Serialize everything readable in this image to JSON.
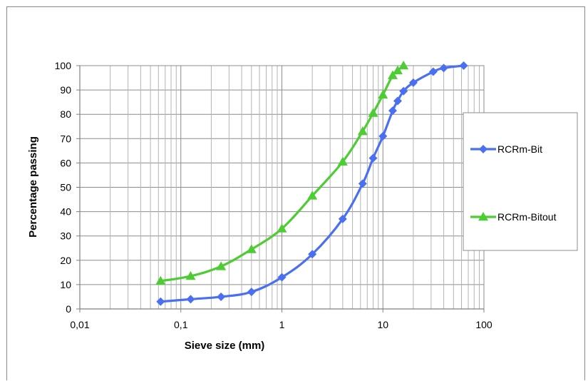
{
  "chart_data": {
    "type": "line",
    "x_scale": "log",
    "xlabel": "Sieve size (mm)",
    "ylabel": "Percentage passing",
    "xlim": [
      0.01,
      100
    ],
    "ylim": [
      0,
      100
    ],
    "x_ticks": [
      "0,01",
      "0,1",
      "1",
      "10",
      "100"
    ],
    "y_ticks": [
      "0",
      "10",
      "20",
      "30",
      "40",
      "50",
      "60",
      "70",
      "80",
      "90",
      "100"
    ],
    "grid": true,
    "legend_position": "right",
    "series": [
      {
        "name": "RCRm-Bit",
        "color": "#4a6ff0",
        "marker": "diamond",
        "x": [
          0.063,
          0.125,
          0.25,
          0.5,
          1,
          2,
          4,
          6.3,
          8,
          10,
          12.5,
          14,
          16,
          20,
          31.5,
          40,
          63
        ],
        "y": [
          3,
          4,
          5,
          7,
          13,
          22.5,
          37,
          51.5,
          62,
          71,
          81.5,
          85.5,
          89.5,
          93,
          97.5,
          99,
          100
        ]
      },
      {
        "name": "RCRm-Bitout",
        "color": "#4dcc33",
        "marker": "triangle",
        "x": [
          0.063,
          0.125,
          0.25,
          0.5,
          1,
          2,
          4,
          6.3,
          8,
          10,
          12.5,
          14,
          16
        ],
        "y": [
          11.5,
          13.5,
          17.5,
          24.5,
          33,
          46.5,
          60.5,
          73,
          80.5,
          88,
          96,
          98,
          100
        ]
      }
    ]
  }
}
